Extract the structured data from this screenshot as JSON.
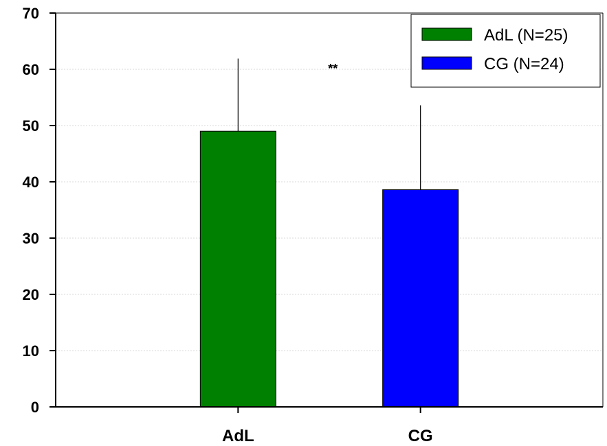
{
  "chart_data": {
    "type": "bar",
    "categories": [
      "AdL",
      "CG"
    ],
    "values": [
      49,
      38.6
    ],
    "error_upper": [
      61.9,
      53.6
    ],
    "colors": [
      "#008000",
      "#0000ff"
    ],
    "legend": {
      "placement": "top-right",
      "entries": [
        {
          "label": "AdL (N=25)",
          "color": "#008000"
        },
        {
          "label": "CG (N=24)",
          "color": "#0000ff"
        }
      ]
    },
    "annotations": [
      {
        "text": "**",
        "x_between": [
          "AdL",
          "CG"
        ],
        "y": 60
      }
    ],
    "ylim": [
      0,
      70
    ],
    "yticks": [
      0,
      10,
      20,
      30,
      40,
      50,
      60,
      70
    ],
    "grid": true,
    "title": "",
    "xlabel": "",
    "ylabel": ""
  }
}
